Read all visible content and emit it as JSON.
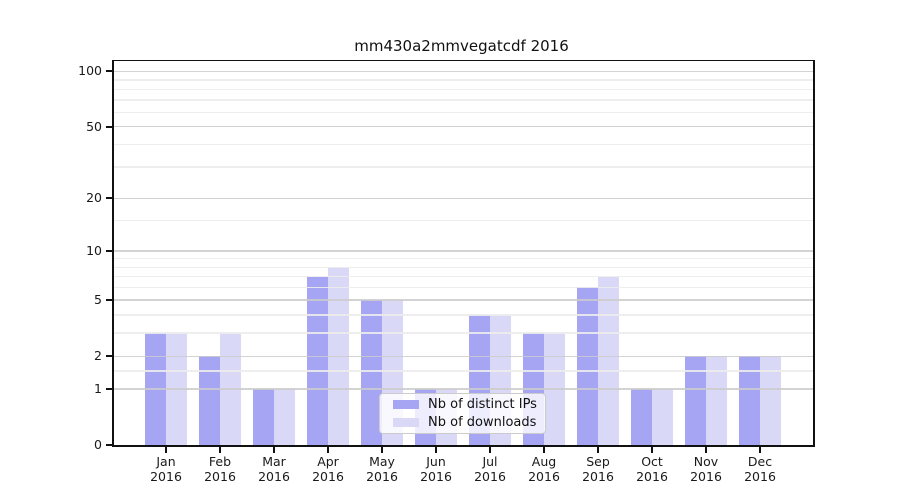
{
  "title": "mm430a2mmvegatcdf 2016",
  "year": "2016",
  "colors": {
    "distinct_ips": "#a5a5f3",
    "downloads": "#d9d9f7",
    "axis": "#111111",
    "major_grid": "#cbcbcb",
    "minor_grid": "#ececec"
  },
  "chart_data": {
    "type": "bar",
    "title": "mm430a2mmvegatcdf 2016",
    "categories": [
      "Jan",
      "Feb",
      "Mar",
      "Apr",
      "May",
      "Jun",
      "Jul",
      "Aug",
      "Sep",
      "Oct",
      "Nov",
      "Dec"
    ],
    "category_year": "2016",
    "series": [
      {
        "name": "Nb of distinct IPs",
        "color": "#a5a5f3",
        "values": [
          3,
          2,
          1,
          7,
          5,
          1,
          4,
          3,
          6,
          1,
          2,
          2
        ]
      },
      {
        "name": "Nb of downloads",
        "color": "#d9d9f7",
        "values": [
          3,
          3,
          1,
          8,
          5,
          1,
          4,
          3,
          7,
          1,
          2,
          2
        ]
      }
    ],
    "xlabel": "",
    "ylabel": "",
    "yscale": "log1p",
    "ylim": [
      0,
      113
    ],
    "yticks": [
      0,
      1,
      2,
      5,
      10,
      20,
      50,
      100
    ],
    "yticks_minor": [
      1.5,
      3,
      4,
      6,
      7,
      8,
      9,
      15,
      30,
      40,
      60,
      70,
      80,
      90
    ],
    "grid": true,
    "legend_position": "lower center"
  }
}
